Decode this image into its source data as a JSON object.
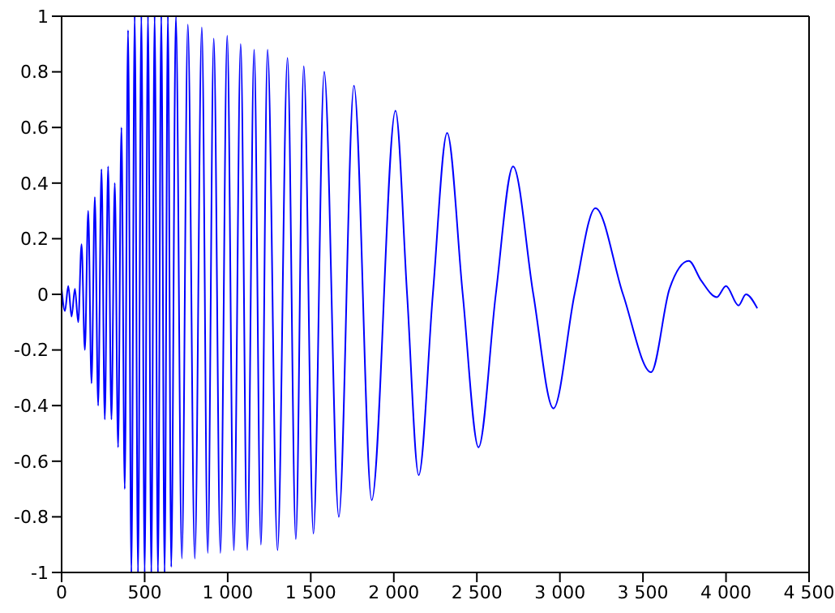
{
  "chart_data": {
    "type": "line",
    "x": [
      0,
      20,
      40,
      60,
      80,
      100,
      120,
      140,
      160,
      180,
      200,
      220,
      240,
      260,
      280,
      300,
      320,
      340,
      360,
      380,
      400,
      420,
      440,
      460,
      480,
      500,
      520,
      540,
      560,
      580,
      600,
      620,
      640,
      660,
      688,
      724,
      760,
      802,
      844,
      880,
      916,
      956,
      997,
      1037,
      1078,
      1118,
      1159,
      1200,
      1240,
      1300,
      1360,
      1410,
      1458,
      1516,
      1581,
      1669,
      1760,
      1867,
      2010,
      2080,
      2150,
      2235,
      2321,
      2415,
      2510,
      2614,
      2718,
      2840,
      2961,
      3088,
      3214,
      3380,
      3549,
      3660,
      3776,
      3850,
      3945,
      4000,
      4075,
      4120,
      4188
    ],
    "series": [
      {
        "color": "#0000ff",
        "values": [
          0.02,
          -0.06,
          0.03,
          -0.08,
          0.02,
          -0.1,
          0.18,
          -0.2,
          0.3,
          -0.32,
          0.35,
          -0.4,
          0.45,
          -0.45,
          0.46,
          -0.45,
          0.4,
          -0.55,
          0.6,
          -0.7,
          0.95,
          -1,
          1,
          -1,
          1,
          -1,
          1,
          -1,
          1,
          -1,
          1,
          -1,
          1,
          -0.98,
          1,
          -0.95,
          0.97,
          -0.95,
          0.96,
          -0.93,
          0.92,
          -0.93,
          0.93,
          -0.92,
          0.9,
          -0.92,
          0.88,
          -0.9,
          0.88,
          -0.92,
          0.85,
          -0.88,
          0.82,
          -0.86,
          0.8,
          -0.8,
          0.75,
          -0.74,
          0.66,
          0,
          -0.65,
          0,
          0.58,
          0,
          -0.55,
          0,
          0.46,
          0,
          -0.41,
          0,
          0.31,
          0,
          -0.28,
          0.02,
          0.12,
          0.05,
          -0.01,
          0.03,
          -0.04,
          0,
          -0.05
        ]
      }
    ],
    "xlim": [
      0,
      4500
    ],
    "xticks": [
      0,
      500,
      {
        "value": 1000,
        "label": "1 000"
      },
      {
        "value": 1500,
        "label": "1 500"
      },
      {
        "value": 2000,
        "label": "2 000"
      },
      {
        "value": 2500,
        "label": "2 500"
      },
      {
        "value": 3000,
        "label": "3 000"
      },
      {
        "value": 3500,
        "label": "3 500"
      },
      {
        "value": 4000,
        "label": "4 000"
      },
      {
        "value": 4500,
        "label": "4 500"
      }
    ],
    "ylim": [
      -1,
      1
    ],
    "yticks": [
      -1,
      -0.8,
      -0.6,
      -0.4,
      -0.2,
      0,
      0.2,
      0.4,
      0.6,
      0.8,
      1
    ],
    "grid": false,
    "legend": false,
    "marker": "none",
    "line_style": "solid"
  }
}
